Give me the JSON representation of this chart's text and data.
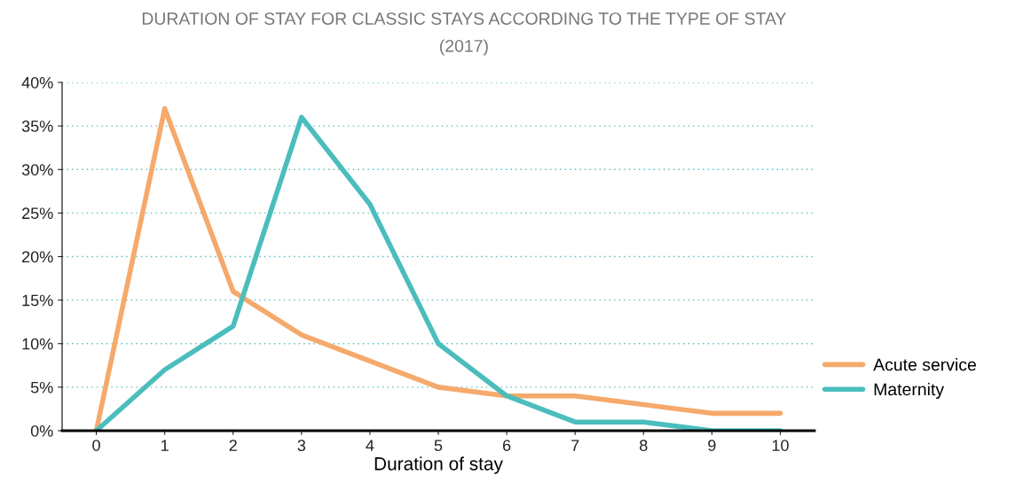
{
  "chart_data": {
    "type": "line",
    "title": "DURATION OF STAY FOR CLASSIC STAYS ACCORDING TO THE TYPE OF STAY\n(2017)",
    "xlabel": "Duration of stay",
    "categories": [
      "0",
      "1",
      "2",
      "3",
      "4",
      "5",
      "6",
      "7",
      "8",
      "9",
      "10"
    ],
    "series": [
      {
        "name": "Acute service",
        "color": "#f5a96b",
        "values": [
          0,
          37,
          16,
          11,
          8,
          5,
          4,
          4,
          3,
          2,
          2
        ]
      },
      {
        "name": "Maternity",
        "color": "#4bbdbd",
        "values": [
          0,
          7,
          12,
          36,
          26,
          10,
          4,
          1,
          1,
          0,
          0
        ]
      }
    ],
    "ylim": [
      0,
      40
    ],
    "yticks": [
      {
        "value": 0,
        "label": "0%"
      },
      {
        "value": 5,
        "label": "5%"
      },
      {
        "value": 10,
        "label": "10%"
      },
      {
        "value": 15,
        "label": "15%"
      },
      {
        "value": 20,
        "label": "20%"
      },
      {
        "value": 25,
        "label": "25%"
      },
      {
        "value": 30,
        "label": "30%"
      },
      {
        "value": 35,
        "label": "35%"
      },
      {
        "value": 40,
        "label": "40%"
      }
    ],
    "grid": "y",
    "legend": "right",
    "marker": "none",
    "line_style": "solid"
  }
}
